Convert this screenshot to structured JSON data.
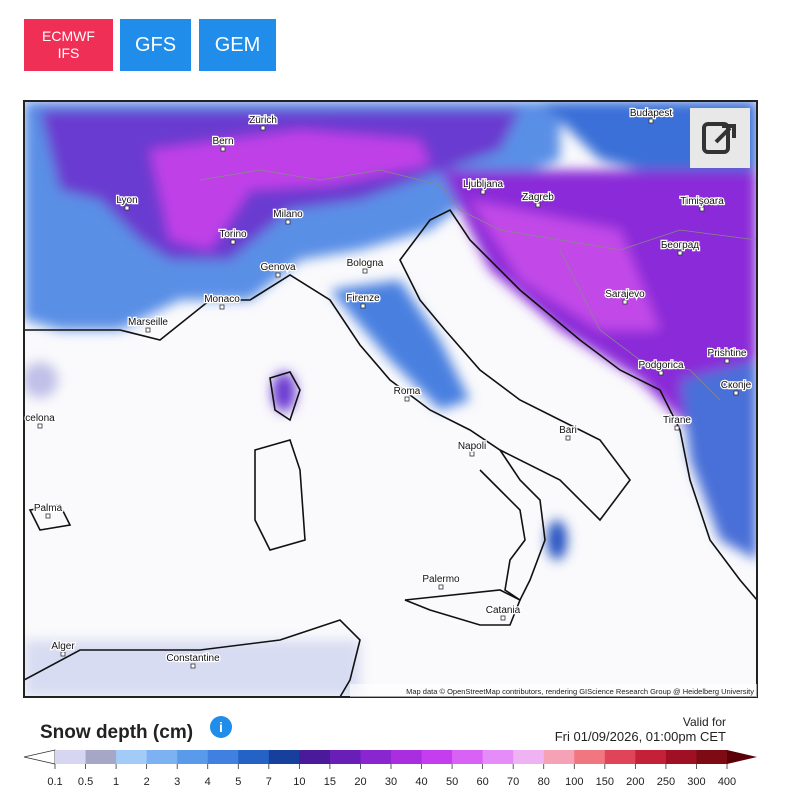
{
  "buttons": [
    "ECMWF\nIFS",
    "GFS",
    "GEM"
  ],
  "map": {
    "cities": [
      "Zürich",
      "Bern",
      "Budapest",
      "Lyon",
      "Ljubljana",
      "Zagreb",
      "Timişoara",
      "Milano",
      "Torino",
      "Genova",
      "Bologna",
      "Београд",
      "Monaco",
      "Marseille",
      "Firenze",
      "Sarajevo",
      "Prishtine",
      "Podgorica",
      "Скопје",
      "Roma",
      "Bari",
      "Tirane",
      "Napoli",
      "celona",
      "Palma",
      "Palermo",
      "Catania",
      "Alger",
      "Constantine"
    ],
    "attribution": "Map data © OpenStreetMap contributors, rendering GIScience Research Group @ Heidelberg University"
  },
  "legend": {
    "title": "Snow depth (cm)",
    "valid_label": "Valid for",
    "valid_time": "Fri 01/09/2026, 01:00pm CET",
    "ticks": [
      "0.1",
      "0.5",
      "1",
      "2",
      "3",
      "4",
      "5",
      "7",
      "10",
      "15",
      "20",
      "30",
      "40",
      "50",
      "60",
      "70",
      "80",
      "100",
      "150",
      "200",
      "250",
      "300",
      "400"
    ]
  }
}
